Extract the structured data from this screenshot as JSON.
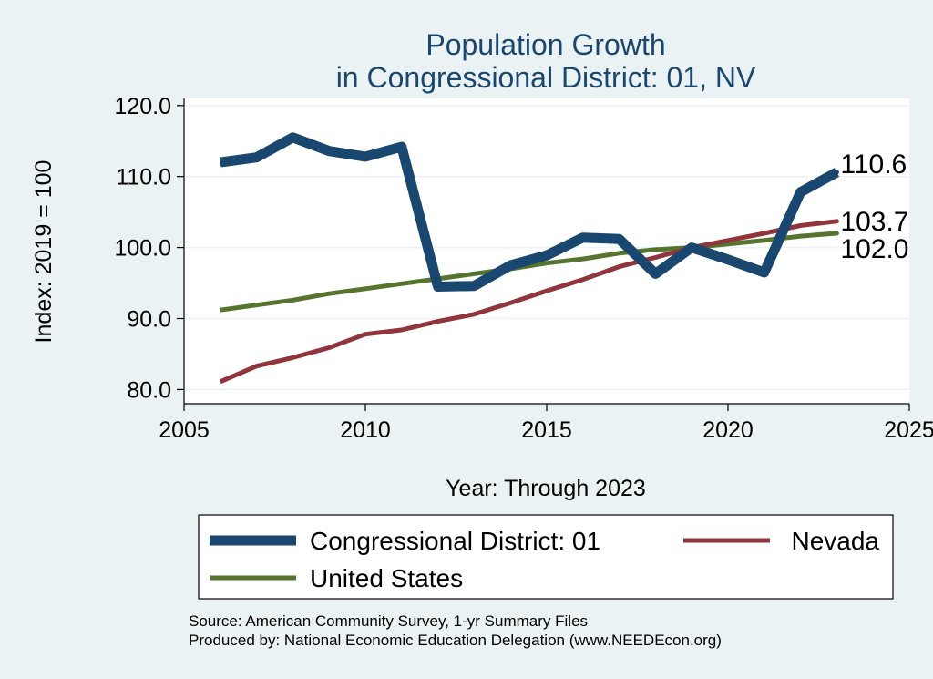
{
  "chart_data": {
    "type": "line",
    "title": [
      "Population Growth",
      "in Congressional District: 01, NV"
    ],
    "xlabel": "Year: Through 2023",
    "ylabel": "Index: 2019 = 100",
    "xlim": [
      2005,
      2025
    ],
    "ylim": [
      78,
      121
    ],
    "x_ticks": [
      2005,
      2010,
      2015,
      2020,
      2025
    ],
    "y_ticks": [
      80,
      90,
      100,
      110,
      120
    ],
    "y_tick_labels": [
      "80.0",
      "90.0",
      "100.0",
      "110.0",
      "120.0"
    ],
    "x": [
      2006,
      2007,
      2008,
      2009,
      2010,
      2011,
      2012,
      2013,
      2014,
      2015,
      2016,
      2017,
      2018,
      2019,
      2020,
      2021,
      2022,
      2023
    ],
    "series": [
      {
        "name": "Congressional District: 01",
        "color": "#1a476f",
        "values": [
          112.0,
          112.7,
          115.5,
          113.6,
          112.8,
          114.2,
          94.5,
          94.6,
          97.5,
          98.9,
          101.4,
          101.2,
          96.3,
          100.0,
          98.3,
          96.5,
          107.8,
          110.6
        ],
        "end_label": "110.6"
      },
      {
        "name": "Nevada",
        "color": "#90353b",
        "values": [
          81.1,
          83.3,
          84.5,
          85.9,
          87.8,
          88.4,
          89.6,
          90.6,
          92.2,
          93.9,
          95.5,
          97.3,
          98.6,
          100.0,
          101.0,
          102.0,
          103.1,
          103.7
        ],
        "end_label": "103.7"
      },
      {
        "name": "United States",
        "color": "#55752f",
        "values": [
          91.2,
          91.9,
          92.6,
          93.5,
          94.2,
          94.9,
          95.6,
          96.3,
          97.0,
          97.8,
          98.4,
          99.2,
          99.7,
          100.0,
          100.5,
          101.0,
          101.6,
          102.0
        ],
        "end_label": "102.0"
      }
    ],
    "legend": [
      "Congressional District: 01",
      "Nevada",
      "United States"
    ],
    "legend_position": "bottom",
    "grid": true
  },
  "source": "Source: American Community Survey, 1-yr Summary Files",
  "produced_by": "Produced by: National Economic Education Delegation (www.NEEDEcon.org)"
}
